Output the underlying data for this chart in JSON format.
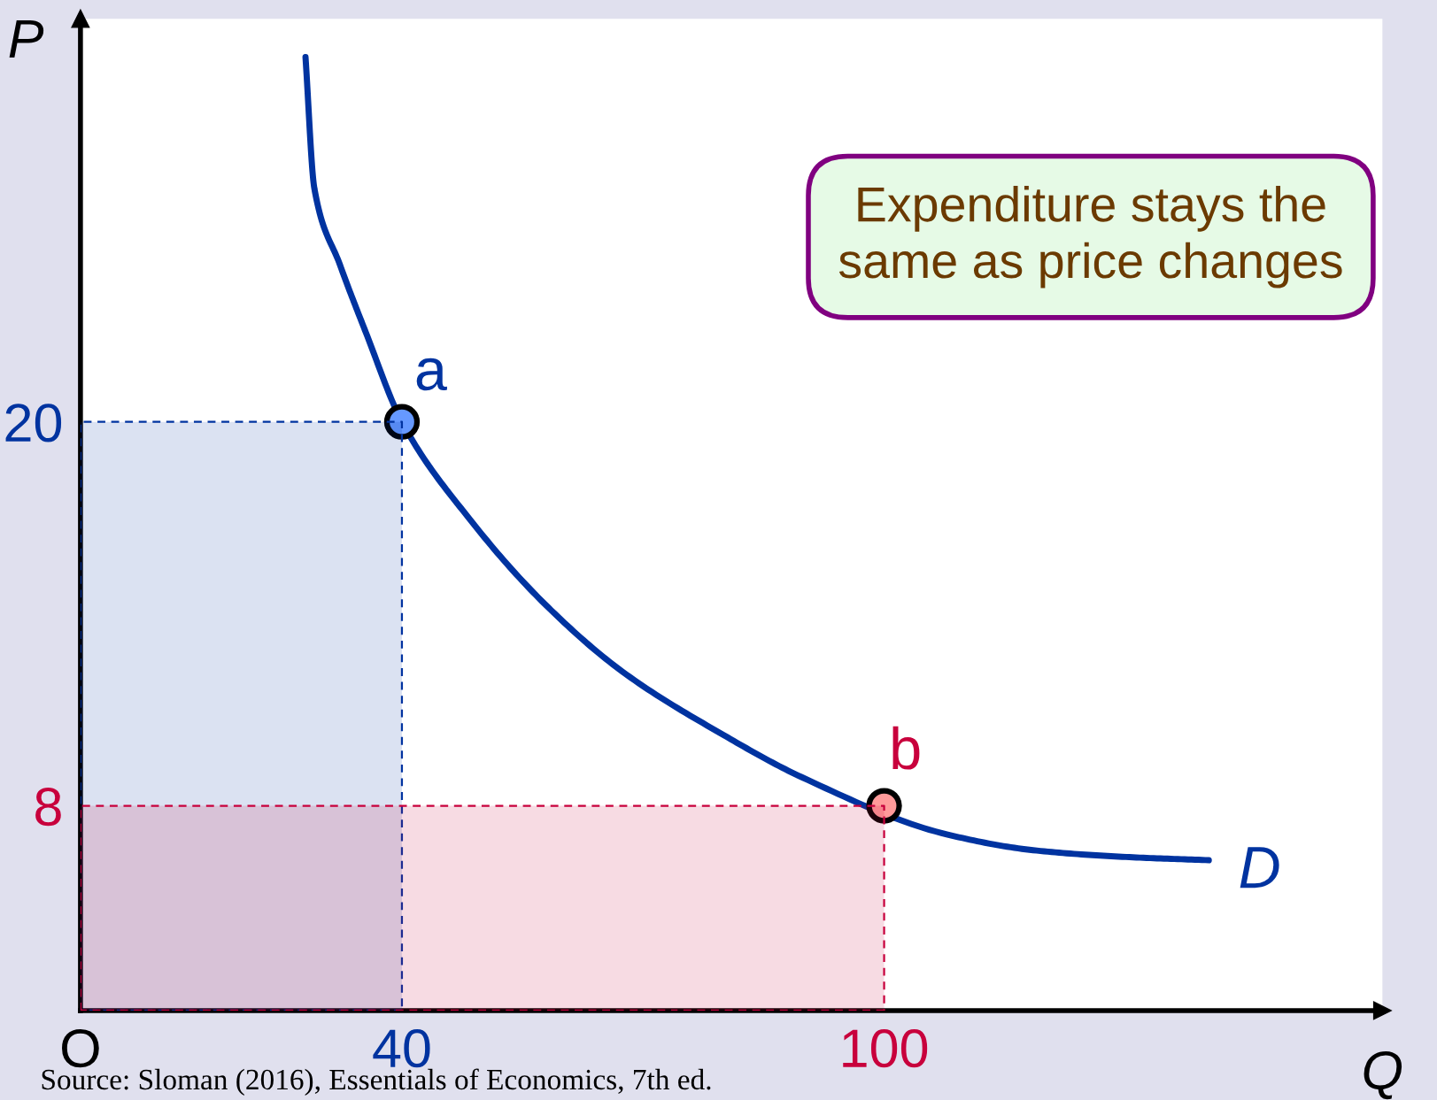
{
  "chart_data": {
    "type": "line",
    "xlabel": "Q",
    "ylabel": "P",
    "xlim": [
      0,
      162
    ],
    "ylim": [
      1.6,
      32.6
    ],
    "xticks": [
      {
        "value": 0,
        "label": "O"
      },
      40,
      100
    ],
    "yticks": [
      8,
      20
    ],
    "grid": false,
    "series": [
      {
        "type": "area",
        "line_style": "dashed",
        "color": "#0033a0",
        "x": [
          0,
          40
        ],
        "values": [
          20,
          20
        ]
      },
      {
        "type": "area",
        "line_style": "dashed",
        "color": "#c8003c",
        "x": [
          0,
          100
        ],
        "values": [
          8,
          8
        ]
      },
      {
        "line_style": "solid",
        "color": "#0033a0",
        "x": [
          28.0,
          29.1,
          32.3,
          35.5,
          40,
          48.3,
          57.8,
          67.4,
          80.1,
          89.7,
          107.9,
          119.0,
          130.1,
          140.4
        ],
        "values": [
          31.4,
          27.3,
          24.9,
          22.8,
          20,
          17.0,
          14.3,
          12.2,
          10.2,
          8.9,
          7.1,
          6.6,
          6.4,
          6.3
        ]
      },
      {
        "type": "scatter",
        "marker": "circle",
        "x": [
          40,
          100
        ],
        "values": [
          20,
          8
        ],
        "colors": [
          "#6699ff",
          "#ff9a9a"
        ]
      }
    ],
    "annotations": [
      "Expenditure stays the\nsame as price changes",
      "Source: Sloman (2016), Essentials of Economics, 7th ed.",
      {
        "text": "a",
        "x": 40,
        "y": 20
      },
      {
        "text": "b",
        "x": 100,
        "y": 8
      },
      {
        "text": "D",
        "x": 140.4,
        "y": 6.3
      }
    ]
  }
}
